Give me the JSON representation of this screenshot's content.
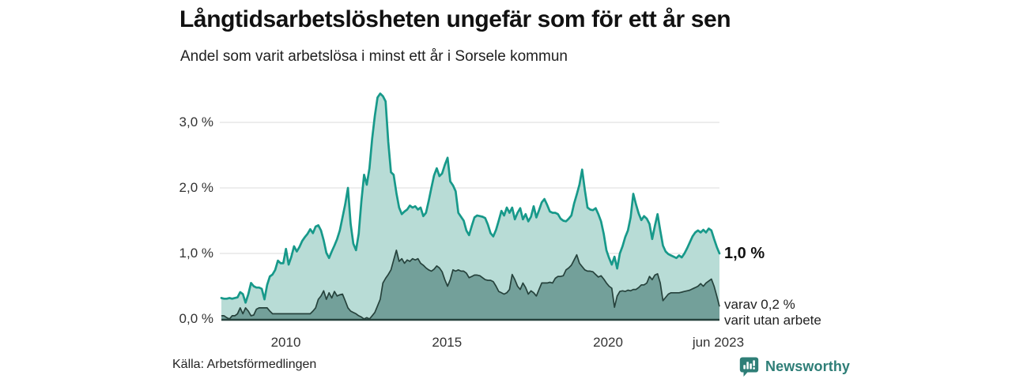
{
  "header": {
    "title": "Långtidsarbetslösheten ungefär som för ett år sen",
    "subtitle": "Andel som varit arbetslösa i minst ett år i Sorsele kommun"
  },
  "chart_data": {
    "type": "area",
    "title": "Långtidsarbetslösheten ungefär som för ett år sen",
    "subtitle": "Andel som varit arbetslösa i minst ett år i Sorsele kommun",
    "region": "Sorsele kommun",
    "unit": "%",
    "x_start": "jan 2008",
    "x_end": "jun 2023",
    "points_per_year": 12,
    "ylim": [
      0,
      3.5
    ],
    "grid": true,
    "yticks": {
      "values": [
        0,
        1,
        2,
        3
      ],
      "labels": [
        "0,0 %",
        "1,0 %",
        "2,0 %",
        "3,0 %"
      ]
    },
    "xticks": [
      {
        "label": "2010",
        "year": 2010.0
      },
      {
        "label": "2015",
        "year": 2015.0
      },
      {
        "label": "2020",
        "year": 2020.0
      },
      {
        "label": "jun 2023",
        "year": 2023.42
      }
    ],
    "series": [
      {
        "name": "Andel som varit arbetslösa i minst ett år",
        "line_color": "#17998a",
        "fill_color": "#b8dcd6",
        "end_value_label": "1,0 %",
        "last_value": 1.0,
        "values": [
          0.32,
          0.31,
          0.31,
          0.32,
          0.31,
          0.32,
          0.33,
          0.41,
          0.38,
          0.25,
          0.38,
          0.55,
          0.5,
          0.48,
          0.48,
          0.46,
          0.3,
          0.52,
          0.65,
          0.68,
          0.75,
          0.89,
          0.85,
          0.85,
          1.07,
          0.83,
          0.95,
          1.11,
          1.03,
          1.1,
          1.19,
          1.25,
          1.3,
          1.37,
          1.31,
          1.41,
          1.43,
          1.35,
          1.2,
          1.01,
          0.93,
          1.03,
          1.12,
          1.22,
          1.35,
          1.55,
          1.75,
          2.0,
          1.45,
          1.15,
          1.05,
          1.3,
          1.8,
          2.2,
          2.05,
          2.3,
          2.75,
          3.1,
          3.38,
          3.44,
          3.4,
          3.32,
          2.7,
          2.24,
          2.2,
          1.92,
          1.7,
          1.6,
          1.64,
          1.67,
          1.73,
          1.7,
          1.72,
          1.67,
          1.7,
          1.57,
          1.62,
          1.8,
          2.0,
          2.19,
          2.3,
          2.18,
          2.22,
          2.35,
          2.46,
          2.1,
          2.04,
          1.95,
          1.62,
          1.56,
          1.5,
          1.35,
          1.28,
          1.42,
          1.55,
          1.58,
          1.57,
          1.56,
          1.54,
          1.44,
          1.31,
          1.26,
          1.36,
          1.5,
          1.65,
          1.58,
          1.7,
          1.62,
          1.7,
          1.52,
          1.62,
          1.69,
          1.52,
          1.6,
          1.49,
          1.56,
          1.72,
          1.55,
          1.66,
          1.78,
          1.83,
          1.74,
          1.64,
          1.62,
          1.62,
          1.6,
          1.53,
          1.5,
          1.49,
          1.53,
          1.58,
          1.76,
          1.9,
          2.05,
          2.28,
          1.97,
          1.7,
          1.67,
          1.66,
          1.69,
          1.6,
          1.49,
          1.3,
          1.05,
          0.93,
          0.83,
          0.95,
          0.77,
          1.0,
          1.11,
          1.25,
          1.35,
          1.55,
          1.91,
          1.75,
          1.61,
          1.51,
          1.57,
          1.53,
          1.45,
          1.22,
          1.42,
          1.6,
          1.35,
          1.12,
          1.03,
          0.99,
          0.97,
          0.95,
          0.93,
          0.97,
          0.94,
          1.0,
          1.08,
          1.17,
          1.26,
          1.32,
          1.35,
          1.32,
          1.36,
          1.32,
          1.38,
          1.35,
          1.22,
          1.1,
          1.0
        ]
      },
      {
        "name": "varav varit utan arbete",
        "line_color": "#26423c",
        "fill_color": "#73a09a",
        "end_value_label": "varav 0,2 % varit utan arbete",
        "last_value": 0.2,
        "values": [
          0.05,
          0.05,
          0.02,
          0.0,
          0.05,
          0.05,
          0.08,
          0.17,
          0.08,
          0.17,
          0.12,
          0.05,
          0.06,
          0.15,
          0.17,
          0.17,
          0.17,
          0.17,
          0.12,
          0.08,
          0.08,
          0.08,
          0.08,
          0.08,
          0.08,
          0.08,
          0.08,
          0.08,
          0.08,
          0.08,
          0.08,
          0.08,
          0.08,
          0.08,
          0.12,
          0.17,
          0.3,
          0.35,
          0.43,
          0.3,
          0.4,
          0.32,
          0.42,
          0.35,
          0.37,
          0.38,
          0.28,
          0.17,
          0.12,
          0.1,
          0.08,
          0.05,
          0.03,
          0.0,
          0.02,
          0.0,
          0.05,
          0.1,
          0.2,
          0.3,
          0.55,
          0.62,
          0.68,
          0.75,
          0.9,
          1.05,
          0.88,
          0.92,
          0.85,
          0.9,
          0.88,
          0.92,
          0.9,
          0.92,
          0.85,
          0.82,
          0.78,
          0.75,
          0.73,
          0.76,
          0.81,
          0.78,
          0.72,
          0.6,
          0.5,
          0.6,
          0.75,
          0.73,
          0.75,
          0.73,
          0.73,
          0.7,
          0.63,
          0.65,
          0.67,
          0.67,
          0.66,
          0.63,
          0.6,
          0.59,
          0.59,
          0.57,
          0.5,
          0.42,
          0.4,
          0.38,
          0.4,
          0.45,
          0.68,
          0.6,
          0.5,
          0.45,
          0.55,
          0.48,
          0.38,
          0.43,
          0.4,
          0.35,
          0.45,
          0.55,
          0.55,
          0.55,
          0.56,
          0.55,
          0.62,
          0.65,
          0.65,
          0.66,
          0.75,
          0.78,
          0.82,
          0.9,
          0.98,
          0.85,
          0.8,
          0.75,
          0.73,
          0.73,
          0.72,
          0.68,
          0.64,
          0.66,
          0.61,
          0.55,
          0.5,
          0.47,
          0.18,
          0.35,
          0.42,
          0.43,
          0.42,
          0.44,
          0.43,
          0.45,
          0.45,
          0.48,
          0.52,
          0.52,
          0.55,
          0.65,
          0.6,
          0.67,
          0.69,
          0.55,
          0.28,
          0.33,
          0.38,
          0.4,
          0.4,
          0.4,
          0.4,
          0.41,
          0.42,
          0.43,
          0.44,
          0.46,
          0.48,
          0.5,
          0.54,
          0.5,
          0.55,
          0.58,
          0.61,
          0.5,
          0.35,
          0.19
        ]
      }
    ]
  },
  "annotations": {
    "primary_end_label": "1,0 %",
    "secondary_end_label_line1": "varav 0,2 %",
    "secondary_end_label_line2": "varit utan arbete"
  },
  "footer": {
    "source": "Källa: Arbetsförmedlingen",
    "brand_name": "Newsworthy"
  },
  "colors": {
    "line_total": "#17998a",
    "fill_total": "#b8dcd6",
    "line_without_work": "#26423c",
    "fill_without_work": "#73a09a",
    "gridline": "#e2e2e2",
    "brand_teal": "#2e7e77",
    "text": "#1a1a1a"
  }
}
